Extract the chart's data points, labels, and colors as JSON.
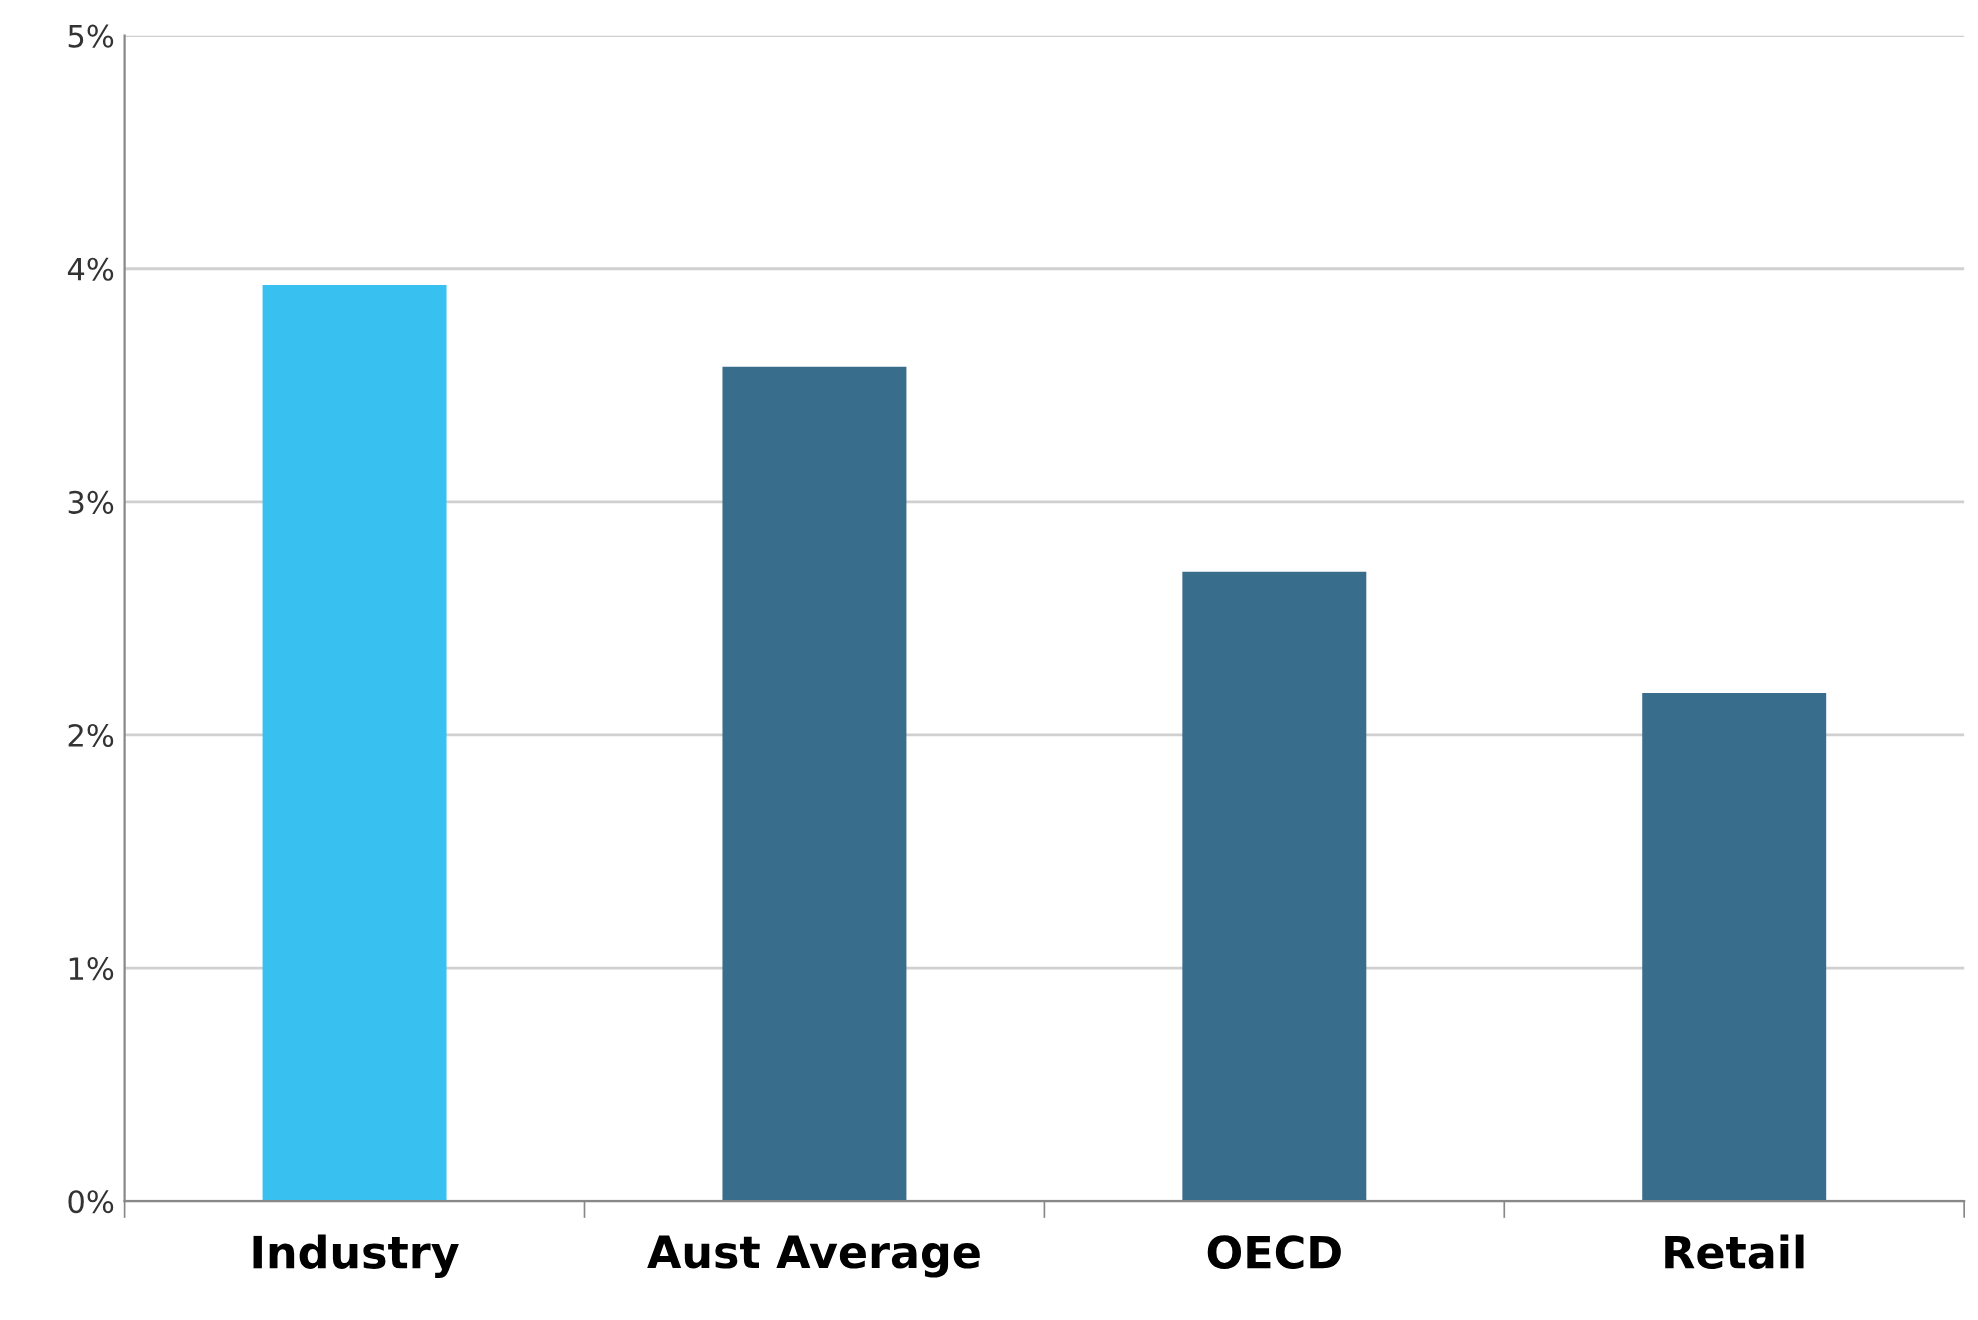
{
  "chart_data": {
    "type": "bar",
    "categories": [
      "Industry",
      "Aust Average",
      "OECD",
      "Retail"
    ],
    "values": [
      3.93,
      3.58,
      2.7,
      2.18
    ],
    "colors": [
      "#38c1f0",
      "#386d8c",
      "#386d8c",
      "#386d8c"
    ],
    "ylim": [
      0,
      5
    ],
    "yticks": [
      {
        "value": 0,
        "label": "0%"
      },
      {
        "value": 1,
        "label": "1%"
      },
      {
        "value": 2,
        "label": "2%"
      },
      {
        "value": 3,
        "label": "3%"
      },
      {
        "value": 4,
        "label": "4%"
      },
      {
        "value": 5,
        "label": "5%"
      }
    ],
    "grid": "y",
    "legend": false
  }
}
